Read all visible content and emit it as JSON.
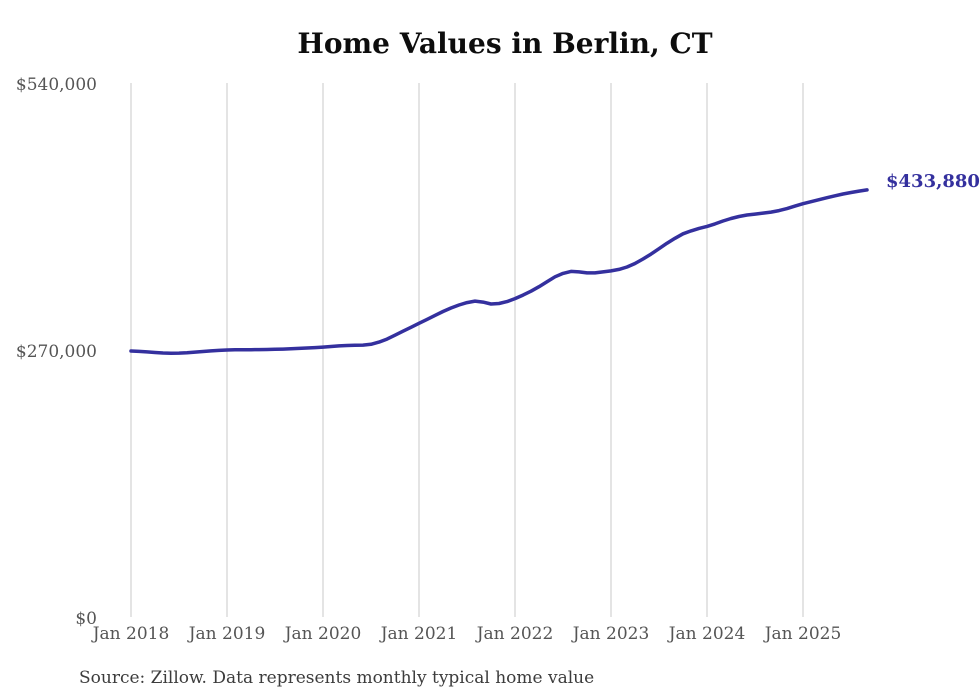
{
  "chart": {
    "title": "Home Values in Berlin, CT",
    "end_label": "$433,880",
    "source": "Source: Zillow. Data represents monthly typical home value"
  },
  "colors": {
    "line": "#34309e",
    "end_label": "#34309e",
    "grid": "#c9c9c9",
    "tick_text": "#555555",
    "title_text": "#0d0d0d",
    "source_text": "#3c3c3c",
    "background": "#ffffff"
  },
  "chart_data": {
    "type": "line",
    "title": "Home Values in Berlin, CT",
    "series_name": "Typical home value (monthly)",
    "x": [
      "2018-01",
      "2018-02",
      "2018-03",
      "2018-04",
      "2018-05",
      "2018-06",
      "2018-07",
      "2018-08",
      "2018-09",
      "2018-10",
      "2018-11",
      "2018-12",
      "2019-01",
      "2019-02",
      "2019-03",
      "2019-04",
      "2019-05",
      "2019-06",
      "2019-07",
      "2019-08",
      "2019-09",
      "2019-10",
      "2019-11",
      "2019-12",
      "2020-01",
      "2020-02",
      "2020-03",
      "2020-04",
      "2020-05",
      "2020-06",
      "2020-07",
      "2020-08",
      "2020-09",
      "2020-10",
      "2020-11",
      "2020-12",
      "2021-01",
      "2021-02",
      "2021-03",
      "2021-04",
      "2021-05",
      "2021-06",
      "2021-07",
      "2021-08",
      "2021-09",
      "2021-10",
      "2021-11",
      "2021-12",
      "2022-01",
      "2022-02",
      "2022-03",
      "2022-04",
      "2022-05",
      "2022-06",
      "2022-07",
      "2022-08",
      "2022-09",
      "2022-10",
      "2022-11",
      "2022-12",
      "2023-01",
      "2023-02",
      "2023-03",
      "2023-04",
      "2023-05",
      "2023-06",
      "2023-07",
      "2023-08",
      "2023-09",
      "2023-10",
      "2023-11",
      "2023-12",
      "2024-01",
      "2024-02",
      "2024-03",
      "2024-04",
      "2024-05",
      "2024-06",
      "2024-07",
      "2024-08",
      "2024-09",
      "2024-10",
      "2024-11",
      "2024-12",
      "2025-01",
      "2025-02",
      "2025-03",
      "2025-04",
      "2025-05",
      "2025-06",
      "2025-07",
      "2025-08",
      "2025-09"
    ],
    "values": [
      271000,
      270600,
      270100,
      269500,
      269000,
      268800,
      268900,
      269300,
      269900,
      270500,
      271100,
      271600,
      272000,
      272200,
      272300,
      272300,
      272400,
      272500,
      272700,
      272900,
      273200,
      273600,
      274000,
      274500,
      275000,
      275600,
      276200,
      276600,
      276800,
      277000,
      277800,
      280000,
      283000,
      287000,
      291000,
      295000,
      299000,
      303000,
      307000,
      311000,
      314500,
      317500,
      320000,
      321500,
      320500,
      318500,
      319000,
      321000,
      324000,
      327500,
      331500,
      336000,
      341000,
      346000,
      349500,
      351500,
      351000,
      350000,
      350000,
      351000,
      352000,
      353500,
      356000,
      359500,
      364000,
      369000,
      374500,
      380000,
      385000,
      389500,
      392500,
      395000,
      397000,
      399500,
      402500,
      405000,
      407000,
      408500,
      409500,
      410500,
      411500,
      413000,
      415000,
      417500,
      420000,
      422000,
      424000,
      426000,
      428000,
      429800,
      431300,
      432700,
      433880
    ],
    "last_value": 433880,
    "last_point_label": "$433,880",
    "x_tick_labels": [
      "Jan 2018",
      "Jan 2019",
      "Jan 2020",
      "Jan 2021",
      "Jan 2022",
      "Jan 2023",
      "Jan 2024",
      "Jan 2025"
    ],
    "x_tick_month_indices": [
      0,
      12,
      24,
      36,
      48,
      60,
      72,
      84
    ],
    "y_ticks": [
      {
        "value": 540000,
        "label": "$540,000"
      },
      {
        "value": 270000,
        "label": "$270,000"
      },
      {
        "value": 0,
        "label": "$0"
      }
    ],
    "ylim": [
      0,
      540000
    ],
    "grid": "vertical-only",
    "legend": "none",
    "source": "Source: Zillow. Data represents monthly typical home value"
  }
}
